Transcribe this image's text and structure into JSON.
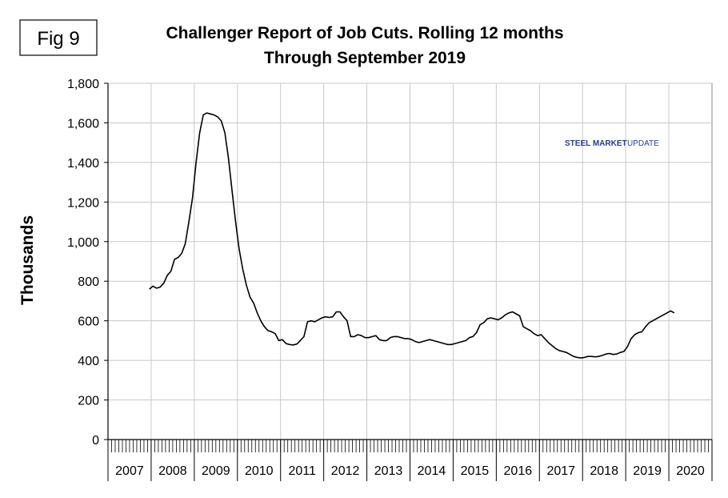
{
  "figure_label": "Fig 9",
  "title_line1": "Challenger Report of Job Cuts. Rolling 12 months",
  "title_line2": "Through September 2019",
  "logo": {
    "name": "steel-market-update-logo",
    "bold": "STEEL MARKET",
    "light": "UPDATE"
  },
  "chart_data": {
    "type": "line",
    "title": "Challenger Report of Job Cuts. Rolling 12 months Through September 2019",
    "ylabel": "Thousands",
    "xlabel": "",
    "ylim": [
      0,
      1800
    ],
    "yticks": [
      "0",
      "200",
      "400",
      "600",
      "800",
      "1,000",
      "1,200",
      "1,400",
      "1,600",
      "1,800"
    ],
    "ytick_values": [
      0,
      200,
      400,
      600,
      800,
      1000,
      1200,
      1400,
      1600,
      1800
    ],
    "x_start_year": 2007,
    "x_end_year": 2021,
    "year_labels": [
      "2007",
      "2008",
      "2009",
      "2010",
      "2011",
      "2012",
      "2013",
      "2014",
      "2015",
      "2016",
      "2017",
      "2018",
      "2019",
      "2020"
    ],
    "grid": true,
    "line_color": "#000000",
    "series": [
      {
        "start": "2007-12",
        "values": [
          760,
          775,
          765,
          770,
          790,
          830,
          850,
          910,
          920,
          940,
          990,
          1100,
          1220,
          1400,
          1550,
          1640,
          1650,
          1645,
          1640,
          1630,
          1610,
          1550,
          1420,
          1260,
          1100,
          960,
          860,
          780,
          720,
          690,
          640,
          600,
          570,
          550,
          545,
          535,
          500,
          505,
          485,
          480,
          478,
          482,
          500,
          520,
          595,
          600,
          595,
          605,
          615,
          620,
          617,
          620,
          645,
          645,
          620,
          600,
          520,
          520,
          530,
          525,
          515,
          515,
          520,
          525,
          505,
          500,
          500,
          515,
          520,
          520,
          515,
          510,
          510,
          505,
          495,
          490,
          495,
          500,
          505,
          500,
          495,
          490,
          485,
          480,
          480,
          485,
          490,
          495,
          500,
          515,
          520,
          540,
          580,
          590,
          610,
          615,
          610,
          605,
          615,
          630,
          640,
          645,
          635,
          625,
          570,
          560,
          550,
          535,
          525,
          530,
          510,
          490,
          475,
          460,
          450,
          445,
          440,
          430,
          420,
          415,
          412,
          415,
          420,
          420,
          418,
          420,
          425,
          432,
          435,
          430,
          432,
          440,
          445,
          470,
          510,
          530,
          540,
          545,
          570,
          590,
          600,
          610,
          620,
          630,
          640,
          650,
          640
        ]
      }
    ]
  }
}
